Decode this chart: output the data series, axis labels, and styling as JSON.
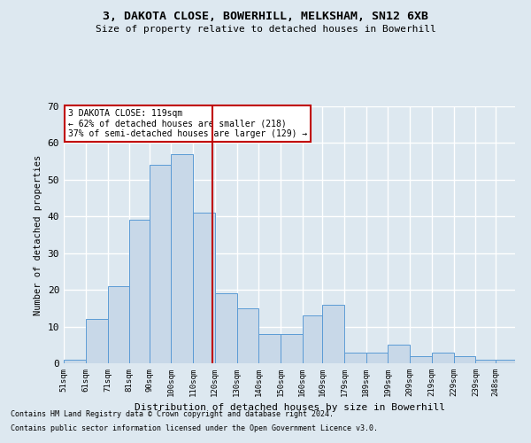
{
  "title1": "3, DAKOTA CLOSE, BOWERHILL, MELKSHAM, SN12 6XB",
  "title2": "Size of property relative to detached houses in Bowerhill",
  "xlabel": "Distribution of detached houses by size in Bowerhill",
  "ylabel": "Number of detached properties",
  "footnote1": "Contains HM Land Registry data © Crown copyright and database right 2024.",
  "footnote2": "Contains public sector information licensed under the Open Government Licence v3.0.",
  "annotation_line1": "3 DAKOTA CLOSE: 119sqm",
  "annotation_line2": "← 62% of detached houses are smaller (218)",
  "annotation_line3": "37% of semi-detached houses are larger (129) →",
  "bar_labels": [
    "51sqm",
    "61sqm",
    "71sqm",
    "81sqm",
    "90sqm",
    "100sqm",
    "110sqm",
    "120sqm",
    "130sqm",
    "140sqm",
    "150sqm",
    "160sqm",
    "169sqm",
    "179sqm",
    "189sqm",
    "199sqm",
    "209sqm",
    "219sqm",
    "229sqm",
    "239sqm",
    "248sqm"
  ],
  "bar_edges": [
    51,
    61,
    71,
    81,
    90,
    100,
    110,
    120,
    130,
    140,
    150,
    160,
    169,
    179,
    189,
    199,
    209,
    219,
    229,
    239,
    248
  ],
  "bar_heights": [
    1,
    12,
    21,
    39,
    54,
    57,
    41,
    19,
    15,
    8,
    8,
    13,
    16,
    3,
    3,
    5,
    2,
    3,
    2,
    1,
    1
  ],
  "bar_color": "#c8d8e8",
  "bar_edge_color": "#5b9bd5",
  "vline_x": 119,
  "vline_color": "#c00000",
  "ylim": [
    0,
    70
  ],
  "yticks": [
    0,
    10,
    20,
    30,
    40,
    50,
    60,
    70
  ],
  "background_color": "#dde8f0",
  "grid_color": "#ffffff",
  "annotation_box_color": "#ffffff",
  "annotation_box_edge": "#c00000"
}
